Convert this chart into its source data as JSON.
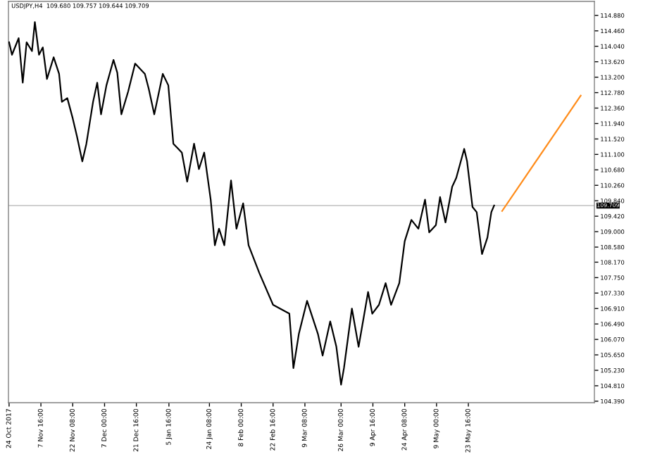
{
  "chart_data": {
    "type": "line",
    "title": "USDJPY,H4  109.680 109.757 109.644 109.709",
    "xlim": [
      "2017-10-23T17:00",
      "2018-07-20T18:00"
    ],
    "xticks": [
      {
        "value": "2017-10-24T00:00",
        "label": "24 Oct 2017"
      },
      {
        "value": "2017-11-07T16:00",
        "label": "7 Nov 16:00"
      },
      {
        "value": "2017-11-22T08:00",
        "label": "22 Nov 08:00"
      },
      {
        "value": "2017-12-07T00:00",
        "label": "7 Dec 00:00"
      },
      {
        "value": "2017-12-21T16:00",
        "label": "21 Dec 16:00"
      },
      {
        "value": "2018-01-05T16:00",
        "label": "5 Jan 16:00"
      },
      {
        "value": "2018-01-24T08:00",
        "label": "24 Jan 08:00"
      },
      {
        "value": "2018-02-08T00:00",
        "label": "8 Feb 00:00"
      },
      {
        "value": "2018-02-22T16:00",
        "label": "22 Feb 16:00"
      },
      {
        "value": "2018-03-09T08:00",
        "label": "9 Mar 08:00"
      },
      {
        "value": "2018-03-26T00:00",
        "label": "26 Mar 00:00"
      },
      {
        "value": "2018-04-09T16:00",
        "label": "9 Apr 16:00"
      },
      {
        "value": "2018-04-24T08:00",
        "label": "24 Apr 08:00"
      },
      {
        "value": "2018-05-09T00:00",
        "label": "9 May 00:00"
      },
      {
        "value": "2018-05-23T16:00",
        "label": "23 May 16:00"
      }
    ],
    "ylim": [
      104.35,
      115.26
    ],
    "yticks": [
      {
        "value": 104.39,
        "label": "104.390"
      },
      {
        "value": 104.81,
        "label": "104.810"
      },
      {
        "value": 105.23,
        "label": "105.230"
      },
      {
        "value": 105.65,
        "label": "105.650"
      },
      {
        "value": 106.07,
        "label": "106.070"
      },
      {
        "value": 106.49,
        "label": "106.490"
      },
      {
        "value": 106.91,
        "label": "106.910"
      },
      {
        "value": 107.33,
        "label": "107.330"
      },
      {
        "value": 107.75,
        "label": "107.750"
      },
      {
        "value": 108.17,
        "label": "108.170"
      },
      {
        "value": 108.58,
        "label": "108.580"
      },
      {
        "value": 109.0,
        "label": "109.000"
      },
      {
        "value": 109.42,
        "label": "109.420"
      },
      {
        "value": 109.84,
        "label": "109.840"
      },
      {
        "value": 110.26,
        "label": "110.260"
      },
      {
        "value": 110.68,
        "label": "110.680"
      },
      {
        "value": 111.1,
        "label": "111.100"
      },
      {
        "value": 111.52,
        "label": "111.520"
      },
      {
        "value": 111.94,
        "label": "111.940"
      },
      {
        "value": 112.36,
        "label": "112.360"
      },
      {
        "value": 112.78,
        "label": "112.780"
      },
      {
        "value": 113.2,
        "label": "113.200"
      },
      {
        "value": 113.62,
        "label": "113.620"
      },
      {
        "value": 114.04,
        "label": "114.040"
      },
      {
        "value": 114.46,
        "label": "114.460"
      },
      {
        "value": 114.88,
        "label": "114.880"
      }
    ],
    "ref_lines": [
      {
        "axis": "y",
        "value": 109.709,
        "label": "109.709",
        "color": "#c0c0c0"
      }
    ],
    "grid": false,
    "marker": "none",
    "line_style": "solid",
    "series": [
      {
        "color": "#000000",
        "x": [
          "2017-10-24T00:00",
          "2017-10-25T08:00",
          "2017-10-28T10:00",
          "2017-10-30T07:00",
          "2017-11-01T02:00",
          "2017-11-03T13:00",
          "2017-11-04T21:00",
          "2017-11-06T19:00",
          "2017-11-08T13:00",
          "2017-11-10T11:00",
          "2017-11-13T13:00",
          "2017-11-16T01:00",
          "2017-11-17T08:00",
          "2017-11-19T20:00",
          "2017-11-22T08:00",
          "2017-11-24T06:00",
          "2017-11-26T18:00",
          "2017-11-28T15:00",
          "2017-12-01T17:00",
          "2017-12-03T15:00",
          "2017-12-05T09:00",
          "2017-12-07T21:00",
          "2017-12-11T03:00",
          "2017-12-12T21:00",
          "2017-12-14T18:00",
          "2017-12-17T21:00",
          "2017-12-21T02:00",
          "2017-12-25T14:00",
          "2017-12-27T09:00",
          "2017-12-29T22:00",
          "2018-01-02T20:00",
          "2018-01-05T09:00",
          "2018-01-07T17:00",
          "2018-01-11T15:00",
          "2018-01-14T02:00",
          "2018-01-17T06:00",
          "2018-01-19T12:00",
          "2018-01-21T22:00",
          "2018-01-24T22:00",
          "2018-01-26T20:00",
          "2018-01-28T18:00",
          "2018-01-31T05:00",
          "2018-02-03T07:00",
          "2018-02-05T19:00",
          "2018-02-08T21:00",
          "2018-02-11T09:00",
          "2018-02-16T09:00",
          "2018-02-22T16:00",
          "2018-03-02T04:00",
          "2018-03-04T01:00",
          "2018-03-06T13:00",
          "2018-03-10T08:00",
          "2018-03-15T08:00",
          "2018-03-17T12:00",
          "2018-03-21T00:00",
          "2018-03-23T20:00",
          "2018-03-26T00:00",
          "2018-03-27T08:00",
          "2018-03-31T00:00",
          "2018-04-03T02:00",
          "2018-04-07T11:00",
          "2018-04-09T09:00",
          "2018-04-12T11:00",
          "2018-04-15T13:00",
          "2018-04-18T01:00",
          "2018-04-21T20:00",
          "2018-04-24T08:00",
          "2018-04-27T10:00",
          "2018-04-30T15:00",
          "2018-05-03T17:00",
          "2018-05-05T15:00",
          "2018-05-08T17:00",
          "2018-05-10T15:00",
          "2018-05-13T03:00",
          "2018-05-16T05:00",
          "2018-05-18T02:00",
          "2018-05-21T18:00",
          "2018-05-23T02:00",
          "2018-05-25T14:00",
          "2018-05-27T12:00",
          "2018-05-29T23:00",
          "2018-06-01T11:00",
          "2018-06-03T06:00",
          "2018-06-04T13:00"
        ],
        "values": [
          114.15,
          113.81,
          114.26,
          113.05,
          114.15,
          113.91,
          114.7,
          113.81,
          114.01,
          113.15,
          113.74,
          113.29,
          112.53,
          112.63,
          112.08,
          111.6,
          110.91,
          111.39,
          112.53,
          113.05,
          112.19,
          112.98,
          113.67,
          113.32,
          112.19,
          112.81,
          113.57,
          113.29,
          112.88,
          112.19,
          113.29,
          112.98,
          111.39,
          111.15,
          110.36,
          111.39,
          110.7,
          111.15,
          109.87,
          108.63,
          109.08,
          108.63,
          110.39,
          109.08,
          109.77,
          108.63,
          107.87,
          107.01,
          106.77,
          105.29,
          106.22,
          107.12,
          106.22,
          105.63,
          106.56,
          105.87,
          104.84,
          105.29,
          106.91,
          105.87,
          107.36,
          106.77,
          107.01,
          107.6,
          107.01,
          107.6,
          108.74,
          109.32,
          109.08,
          109.87,
          108.98,
          109.18,
          109.94,
          109.25,
          110.22,
          110.46,
          111.25,
          110.91,
          109.67,
          109.53,
          108.39,
          108.84,
          109.53,
          109.71
        ]
      },
      {
        "color": "#ff8c1a",
        "x": [
          "2018-06-08T05:00",
          "2018-07-14T11:00"
        ],
        "values": [
          109.56,
          112.7
        ]
      }
    ]
  }
}
